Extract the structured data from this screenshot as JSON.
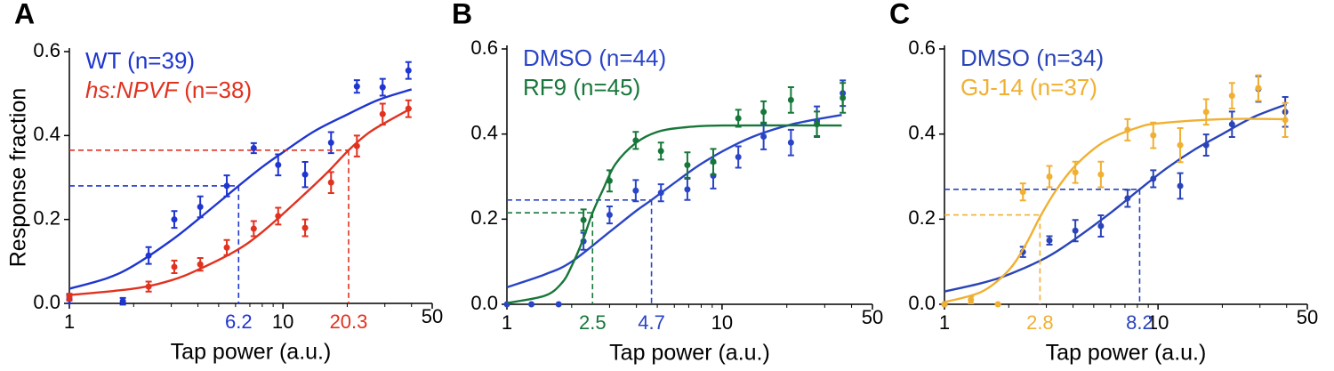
{
  "chart_data": [
    {
      "type": "scatter",
      "panel": "A",
      "xlabel": "Tap power (a.u.)",
      "ylabel": "Response fraction",
      "xscale": "log",
      "xlim": [
        1,
        50
      ],
      "ylim": [
        0,
        0.6
      ],
      "xticks": [
        1,
        10,
        50
      ],
      "yticks": [
        {
          "value": 0,
          "label": "0.0"
        },
        0.2,
        0.4,
        0.6
      ],
      "series": [
        {
          "name": "WT (n=39)",
          "color": "#1f35d0",
          "x": [
            1,
            1.78,
            2.35,
            3.1,
            4.1,
            5.46,
            7.3,
            9.5,
            12.7,
            16.8,
            22.2,
            29.3,
            38.7
          ],
          "values": [
            0.01,
            0.005,
            0.114,
            0.2,
            0.23,
            0.28,
            0.37,
            0.33,
            0.307,
            0.383,
            0.517,
            0.515,
            0.555
          ],
          "errors": [
            0.01,
            0.008,
            0.02,
            0.02,
            0.025,
            0.025,
            0.012,
            0.025,
            0.03,
            0.025,
            0.015,
            0.02,
            0.02
          ],
          "fit_x": [
            1,
            1.5,
            2,
            3,
            4,
            6.2,
            8,
            10,
            14,
            20,
            28,
            40
          ],
          "fit_values": [
            0.035,
            0.06,
            0.09,
            0.15,
            0.2,
            0.28,
            0.325,
            0.36,
            0.41,
            0.45,
            0.485,
            0.51
          ],
          "marker": {
            "x": 6.2,
            "y": 0.28
          }
        },
        {
          "name": "hs:NPVF (n=38)",
          "color": "#e1321f",
          "name_style": "italic",
          "x": [
            1,
            2.35,
            3.1,
            4.1,
            5.46,
            7.3,
            9.5,
            12.7,
            16.8,
            22.2,
            29.3,
            38.7
          ],
          "values": [
            0.015,
            0.04,
            0.087,
            0.093,
            0.133,
            0.178,
            0.208,
            0.18,
            0.288,
            0.375,
            0.451,
            0.464
          ],
          "errors": [
            0.008,
            0.012,
            0.015,
            0.015,
            0.018,
            0.018,
            0.02,
            0.02,
            0.025,
            0.025,
            0.025,
            0.02
          ],
          "fit_x": [
            1,
            2,
            3,
            4,
            6,
            8,
            12,
            16,
            20.3,
            25,
            30,
            40
          ],
          "fit_values": [
            0.02,
            0.035,
            0.055,
            0.08,
            0.125,
            0.17,
            0.25,
            0.31,
            0.365,
            0.405,
            0.43,
            0.465
          ],
          "marker": {
            "x": 20.3,
            "y": 0.365
          }
        }
      ]
    },
    {
      "type": "scatter",
      "panel": "B",
      "xlabel": "Tap power (a.u.)",
      "xscale": "log",
      "xlim": [
        1,
        50
      ],
      "ylim": [
        0,
        0.6
      ],
      "xticks": [
        1,
        10,
        50
      ],
      "yticks": [
        {
          "value": 0,
          "label": "0.0"
        },
        0.2,
        0.4,
        0.6
      ],
      "series": [
        {
          "name": "DMSO (n=44)",
          "color": "#2a44c8",
          "x": [
            1,
            1.3,
            1.74,
            2.27,
            3.0,
            3.97,
            5.2,
            6.9,
            9.1,
            11.9,
            15.6,
            20.9,
            27.6,
            36.4
          ],
          "values": [
            0,
            0,
            0,
            0.148,
            0.21,
            0.267,
            0.262,
            0.27,
            0.302,
            0.346,
            0.394,
            0.38,
            0.43,
            0.496
          ],
          "errors": [
            0,
            0,
            0,
            0.02,
            0.02,
            0.025,
            0.02,
            0.025,
            0.03,
            0.025,
            0.03,
            0.03,
            0.035,
            0.03
          ],
          "fit_x": [
            1,
            1.5,
            2,
            3,
            4,
            4.7,
            6,
            8,
            11,
            15,
            22,
            36
          ],
          "fit_values": [
            0.04,
            0.07,
            0.1,
            0.17,
            0.22,
            0.245,
            0.285,
            0.33,
            0.37,
            0.4,
            0.425,
            0.445
          ],
          "marker": {
            "x": 4.7,
            "y": 0.245
          }
        },
        {
          "name": "RF9 (n=45)",
          "color": "#17773a",
          "x": [
            2.27,
            3.0,
            3.97,
            5.2,
            6.9,
            9.1,
            11.9,
            15.6,
            20.9,
            27.6,
            36.4
          ],
          "values": [
            0.198,
            0.29,
            0.385,
            0.36,
            0.327,
            0.335,
            0.437,
            0.452,
            0.48,
            0.423,
            0.485
          ],
          "errors": [
            0.025,
            0.025,
            0.02,
            0.02,
            0.03,
            0.03,
            0.02,
            0.025,
            0.03,
            0.03,
            0.035
          ],
          "fit_x": [
            1,
            1.5,
            1.8,
            2,
            2.25,
            2.5,
            2.8,
            3.2,
            4,
            5,
            6.5,
            10,
            36
          ],
          "fit_values": [
            0.003,
            0.02,
            0.05,
            0.09,
            0.15,
            0.215,
            0.27,
            0.33,
            0.38,
            0.405,
            0.415,
            0.42,
            0.42
          ],
          "marker": {
            "x": 2.5,
            "y": 0.215
          }
        }
      ]
    },
    {
      "type": "scatter",
      "panel": "C",
      "xlabel": "Tap power (a.u.)",
      "xscale": "log",
      "xlim": [
        1,
        50
      ],
      "ylim": [
        0,
        0.6
      ],
      "xticks": [
        1,
        10,
        50
      ],
      "yticks": [
        {
          "value": 0,
          "label": "0.0"
        },
        0.2,
        0.4,
        0.6
      ],
      "series": [
        {
          "name": "DMSO (n=34)",
          "color": "#2a44b8",
          "x": [
            1,
            2.33,
            3.1,
            4.1,
            5.4,
            7.2,
            9.5,
            12.7,
            16.8,
            22.2,
            29.5,
            39.4
          ],
          "values": [
            0,
            0.123,
            0.15,
            0.173,
            0.184,
            0.249,
            0.295,
            0.278,
            0.374,
            0.423,
            0.506,
            0.452
          ],
          "errors": [
            0,
            0.012,
            0.01,
            0.025,
            0.025,
            0.02,
            0.02,
            0.03,
            0.025,
            0.03,
            0.03,
            0.035
          ],
          "fit_x": [
            1,
            1.5,
            2,
            3,
            4,
            6,
            8.2,
            11,
            15,
            20,
            28,
            40
          ],
          "fit_values": [
            0.03,
            0.05,
            0.07,
            0.11,
            0.15,
            0.215,
            0.27,
            0.32,
            0.365,
            0.4,
            0.44,
            0.47
          ],
          "marker": {
            "x": 8.2,
            "y": 0.27
          }
        },
        {
          "name": "GJ-14 (n=37)",
          "color": "#f0b032",
          "x": [
            1,
            1.33,
            1.78,
            2.33,
            3.1,
            4.1,
            5.4,
            7.2,
            9.5,
            12.7,
            16.8,
            22.2,
            29.5,
            39.4
          ],
          "values": [
            0,
            0.01,
            0,
            0.264,
            0.3,
            0.31,
            0.305,
            0.41,
            0.397,
            0.374,
            0.452,
            0.49,
            0.508,
            0.433
          ],
          "errors": [
            0,
            0.008,
            0,
            0.02,
            0.025,
            0.025,
            0.03,
            0.025,
            0.03,
            0.04,
            0.03,
            0.03,
            0.03,
            0.04
          ],
          "fit_x": [
            1,
            1.5,
            2,
            2.4,
            2.8,
            3.3,
            4,
            5,
            6,
            8,
            10,
            20,
            40
          ],
          "fit_values": [
            0.005,
            0.03,
            0.08,
            0.14,
            0.205,
            0.265,
            0.32,
            0.365,
            0.39,
            0.415,
            0.425,
            0.435,
            0.435
          ],
          "marker": {
            "x": 2.8,
            "y": 0.21
          }
        }
      ]
    }
  ]
}
